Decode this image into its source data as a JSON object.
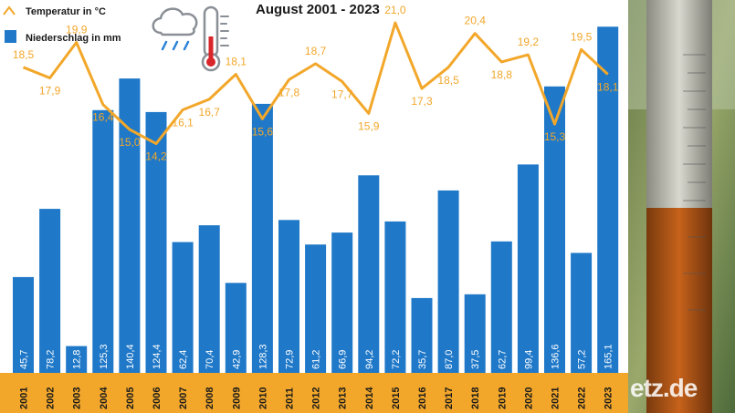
{
  "title": "August 2001 - 2023",
  "legend": {
    "temperature": "Temperatur in °C",
    "precipitation": "Niederschlag in mm"
  },
  "watermark": "etz.de",
  "colors": {
    "bar": "#1f78c8",
    "line": "#f2a72a",
    "year_axis": "#f2a72a"
  },
  "icons": [
    "weather-cloud-rain-icon",
    "thermometer-icon",
    "rain-gauge-photo"
  ],
  "chart_data": {
    "type": "bar",
    "categories": [
      "2001",
      "2002",
      "2003",
      "2004",
      "2005",
      "2006",
      "2007",
      "2008",
      "2009",
      "2010",
      "2011",
      "2012",
      "2013",
      "2014",
      "2015",
      "2016",
      "2017",
      "2018",
      "2019",
      "2020",
      "2021",
      "2022",
      "2023"
    ],
    "series": [
      {
        "name": "Niederschlag in mm",
        "type": "bar",
        "values": [
          45.7,
          78.2,
          12.8,
          125.3,
          140.4,
          124.4,
          62.4,
          70.4,
          42.9,
          128.3,
          72.9,
          61.2,
          66.9,
          94.2,
          72.2,
          35.7,
          87.0,
          37.5,
          62.7,
          99.4,
          136.6,
          57.2,
          165.1
        ],
        "labels": [
          "45,7",
          "78,2",
          "12,8",
          "125,3",
          "140,4",
          "124,4",
          "62,4",
          "70,4",
          "42,9",
          "128,3",
          "72,9",
          "61,2",
          "66,9",
          "94,2",
          "72,2",
          "35,7",
          "87,0",
          "37,5",
          "62,7",
          "99,4",
          "136,6",
          "57,2",
          "165,1"
        ]
      },
      {
        "name": "Temperatur in °C",
        "type": "line",
        "values": [
          18.5,
          17.9,
          19.9,
          16.4,
          15.0,
          14.2,
          16.1,
          16.7,
          18.1,
          15.6,
          17.8,
          18.7,
          17.7,
          15.9,
          21.0,
          17.3,
          18.5,
          20.4,
          18.8,
          19.2,
          15.3,
          19.5,
          18.1
        ],
        "labels": [
          "18,5",
          "17,9",
          "19,9",
          "16,4",
          "15,0",
          "14,2",
          "16,1",
          "16,7",
          "18,1",
          "15,6",
          "17,8",
          "18,7",
          "17,7",
          "15,9",
          "21,0",
          "17,3",
          "18,5",
          "20,4",
          "18,8",
          "19,2",
          "15,3",
          "19,5",
          "18,1"
        ]
      }
    ]
  }
}
